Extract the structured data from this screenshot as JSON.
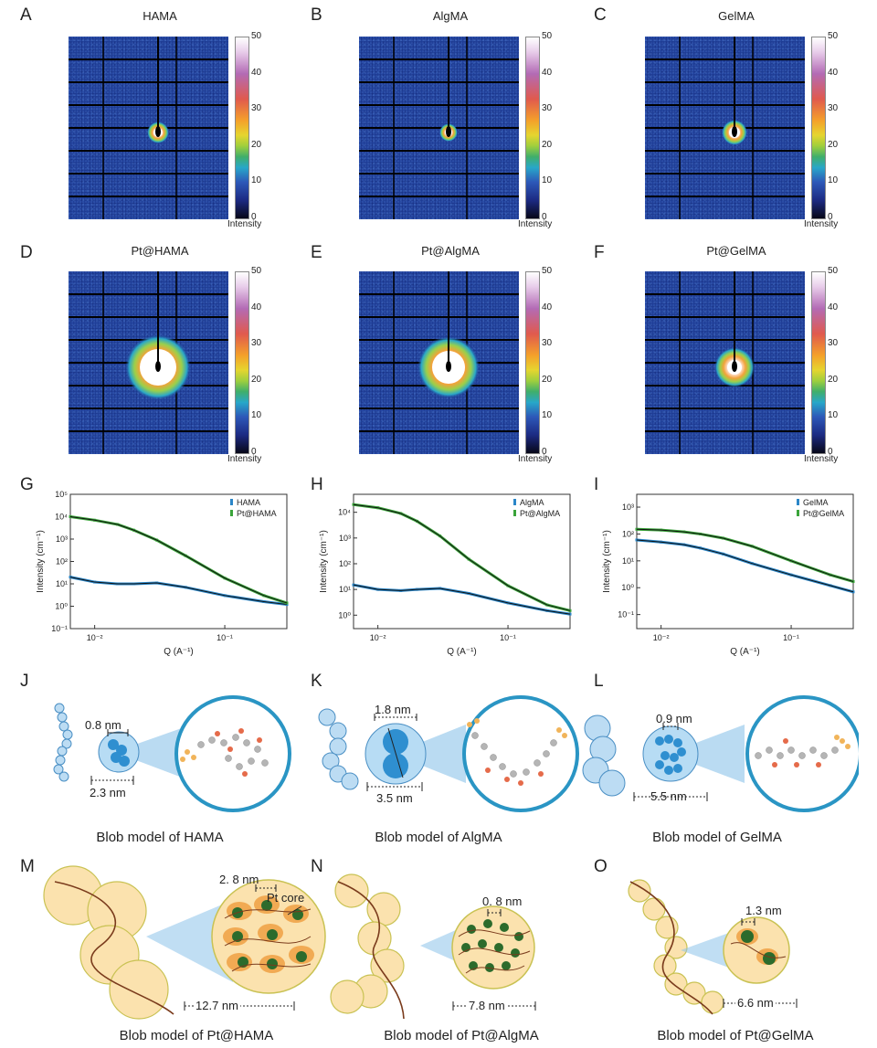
{
  "letters": [
    "A",
    "B",
    "C",
    "D",
    "E",
    "F",
    "G",
    "H",
    "I",
    "J",
    "K",
    "L",
    "M",
    "N",
    "O"
  ],
  "detector_titles": [
    "HAMA",
    "AlgMA",
    "GelMA",
    "Pt@HAMA",
    "Pt@AlgMA",
    "Pt@GelMA"
  ],
  "colorbar": {
    "ticks": [
      "50",
      "40",
      "30",
      "20",
      "10",
      "0"
    ],
    "label": "Intensity"
  },
  "colors": {
    "detector_bg": "#1e3d96",
    "hydrogel_curve": "#2a86c8",
    "pt_curve": "#3aa43a",
    "fit_line": "#111111",
    "blob_blue": "#2f8fd0",
    "blob_orange": "#f0a44a",
    "pt_core": "#2c6b2c"
  },
  "chart_data": [
    {
      "type": "scatter",
      "xlabel": "Q (A⁻¹)",
      "ylabel": "Intensity (cm⁻¹)",
      "xscale": "log",
      "yscale": "log",
      "xlim": [
        0.0065,
        0.3
      ],
      "ylim": [
        0.1,
        100000
      ],
      "x_ticks": [
        "10⁻²",
        "10⁻¹"
      ],
      "y_ticks": [
        "10⁻¹",
        "10⁰",
        "10¹",
        "10²",
        "10³",
        "10⁴",
        "10⁵"
      ],
      "legend_position": "top-right",
      "series": [
        {
          "name": "HAMA",
          "x": [
            0.0065,
            0.01,
            0.015,
            0.02,
            0.03,
            0.05,
            0.1,
            0.2,
            0.3
          ],
          "y": [
            20,
            12,
            10,
            10,
            11,
            7,
            3,
            1.6,
            1.2
          ]
        },
        {
          "name": "Pt@HAMA",
          "x": [
            0.0065,
            0.01,
            0.015,
            0.02,
            0.03,
            0.05,
            0.1,
            0.2,
            0.3
          ],
          "y": [
            10000,
            7000,
            4500,
            2500,
            900,
            180,
            18,
            3,
            1.4
          ]
        }
      ]
    },
    {
      "type": "scatter",
      "xlabel": "Q (A⁻¹)",
      "ylabel": "Intensity (cm⁻¹)",
      "xscale": "log",
      "yscale": "log",
      "xlim": [
        0.0065,
        0.3
      ],
      "ylim": [
        0.3,
        50000
      ],
      "x_ticks": [
        "10⁻²",
        "10⁻¹"
      ],
      "y_ticks": [
        "10⁰",
        "10¹",
        "10²",
        "10³",
        "10⁴"
      ],
      "legend_position": "top-right",
      "series": [
        {
          "name": "AlgMA",
          "x": [
            0.0065,
            0.01,
            0.015,
            0.02,
            0.03,
            0.05,
            0.1,
            0.2,
            0.3
          ],
          "y": [
            15,
            10,
            9,
            10,
            11,
            7,
            3,
            1.5,
            1.1
          ]
        },
        {
          "name": "Pt@AlgMA",
          "x": [
            0.0065,
            0.01,
            0.015,
            0.02,
            0.03,
            0.05,
            0.1,
            0.2,
            0.3
          ],
          "y": [
            20000,
            15000,
            9000,
            4500,
            1200,
            150,
            14,
            2.5,
            1.5
          ]
        }
      ]
    },
    {
      "type": "scatter",
      "xlabel": "Q (A⁻¹)",
      "ylabel": "Intensity (cm⁻¹)",
      "xscale": "log",
      "yscale": "log",
      "xlim": [
        0.0065,
        0.3
      ],
      "ylim": [
        0.03,
        3000
      ],
      "x_ticks": [
        "10⁻²",
        "10⁻¹"
      ],
      "y_ticks": [
        "10⁻¹",
        "10⁰",
        "10¹",
        "10²",
        "10³"
      ],
      "legend_position": "top-right",
      "series": [
        {
          "name": "GelMA",
          "x": [
            0.0065,
            0.01,
            0.015,
            0.02,
            0.03,
            0.05,
            0.1,
            0.2,
            0.3
          ],
          "y": [
            60,
            50,
            40,
            30,
            18,
            8,
            3,
            1.2,
            0.7
          ]
        },
        {
          "name": "Pt@GelMA",
          "x": [
            0.0065,
            0.01,
            0.015,
            0.02,
            0.03,
            0.05,
            0.1,
            0.2,
            0.3
          ],
          "y": [
            150,
            140,
            120,
            100,
            70,
            35,
            10,
            3,
            1.7
          ]
        }
      ]
    }
  ],
  "blob_labels": {
    "J": {
      "small": "0.8 nm",
      "large": "2.3 nm"
    },
    "K": {
      "small": "1.8 nm",
      "large": "3.5 nm"
    },
    "L": {
      "small": "0.9 nm",
      "large": "5.5 nm"
    },
    "M": {
      "small": "2. 8 nm",
      "large": "12.7 nm",
      "core": "Pt core"
    },
    "N": {
      "small": "0. 8 nm",
      "large": "7.8 nm"
    },
    "O": {
      "small": "1.3 nm",
      "large": "6.6 nm"
    }
  },
  "captions": [
    "Blob model of HAMA",
    "Blob model of AlgMA",
    "Blob model of GelMA",
    "Blob model of Pt@HAMA",
    "Blob model of Pt@AlgMA",
    "Blob model of Pt@GelMA"
  ]
}
